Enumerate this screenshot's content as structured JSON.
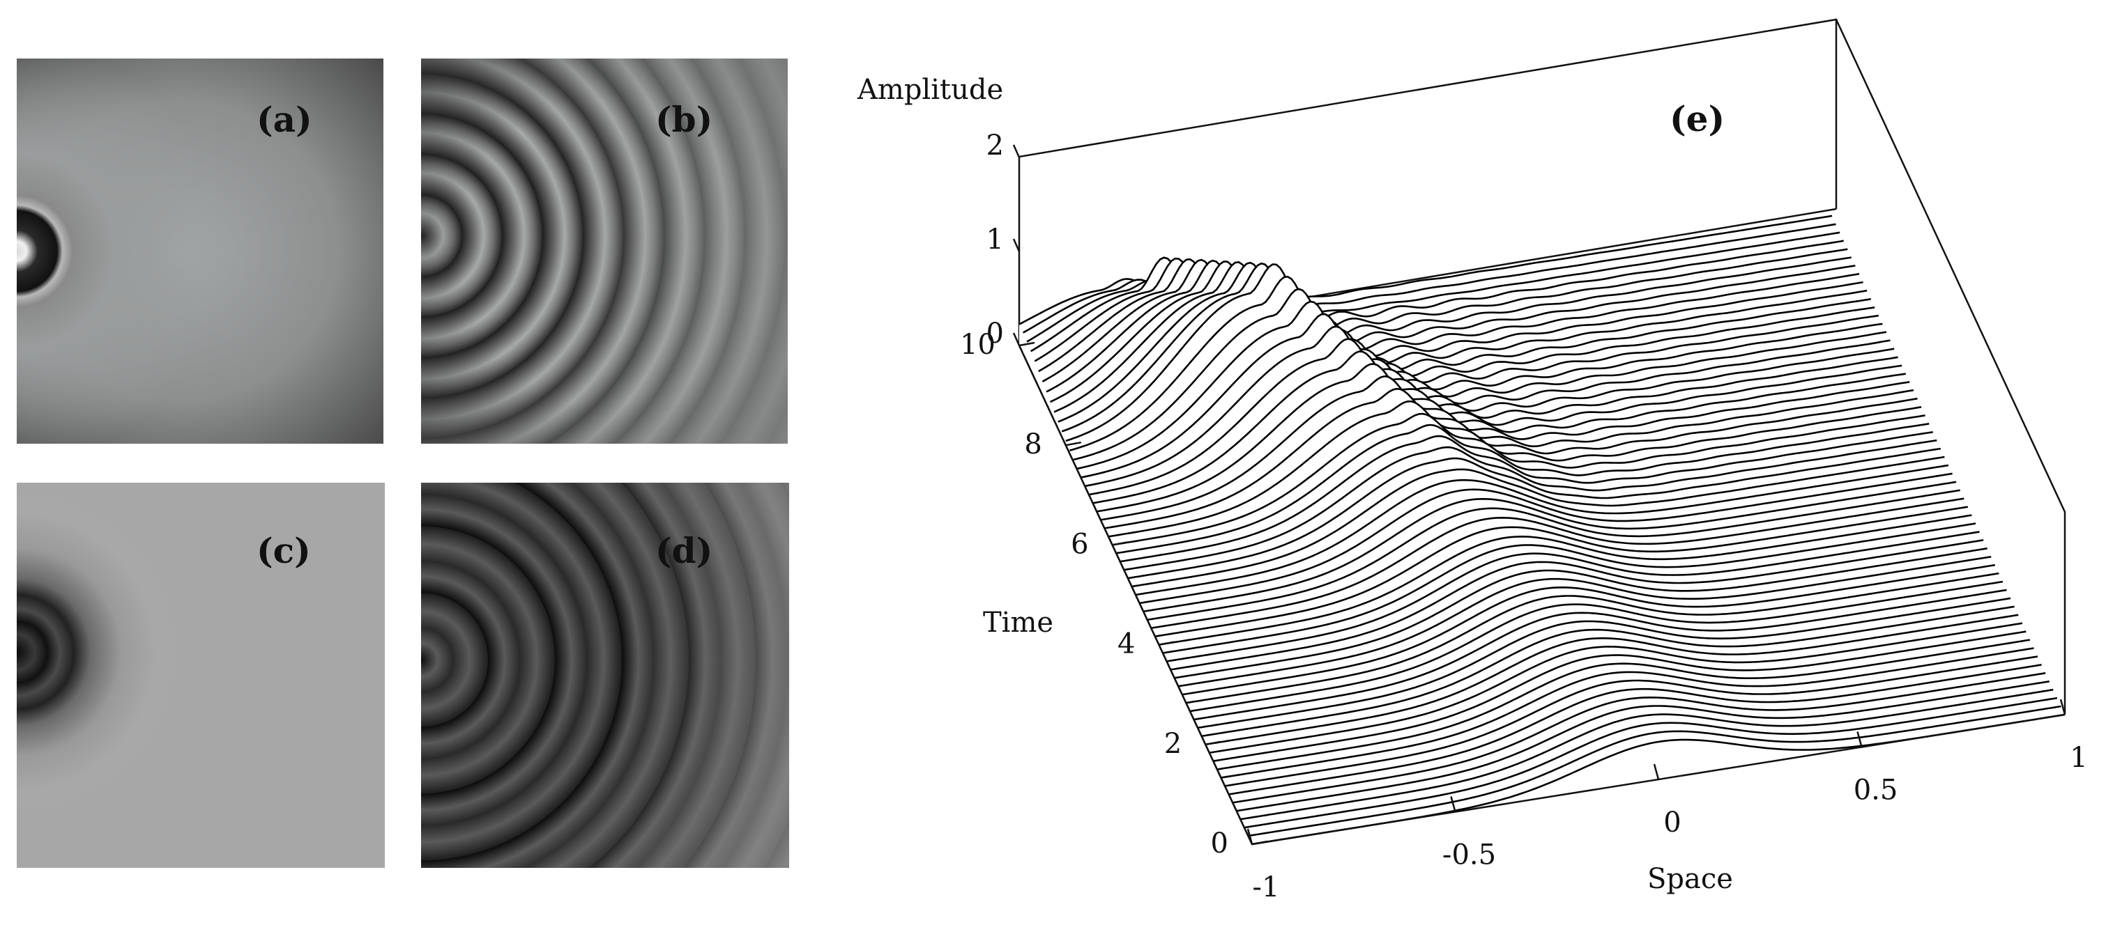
{
  "panels": [
    {
      "id": "a",
      "label": "(a)"
    },
    {
      "id": "b",
      "label": "(b)"
    },
    {
      "id": "c",
      "label": "(c)"
    },
    {
      "id": "d",
      "label": "(d)"
    }
  ],
  "chart_data": {
    "type": "waterfall-3d-line",
    "panel_label": "(e)",
    "title": "",
    "xlabel": "Space",
    "ylabel": "Time",
    "zlabel": "Amplitude",
    "x_ticks": [
      "-1",
      "-0.5",
      "0",
      "0.5",
      "1"
    ],
    "y_ticks": [
      "0",
      "2",
      "4",
      "6",
      "8",
      "10"
    ],
    "z_ticks": [
      "0",
      "1",
      "2"
    ],
    "xlim": [
      -1,
      1
    ],
    "ylim": [
      0,
      10
    ],
    "zlim": [
      0,
      2
    ],
    "series": [
      {
        "time": 0,
        "peak_x": 0,
        "peak_amplitude": 0.4
      },
      {
        "time": 4,
        "peak_x": -0.15,
        "peak_amplitude": 0.55
      },
      {
        "time": 6,
        "peak_x": -0.3,
        "peak_amplitude": 0.8
      },
      {
        "time": 8,
        "peak_x": -0.55,
        "peak_amplitude": 1.3
      },
      {
        "time": 10,
        "peak_x": -0.8,
        "peak_amplitude": 0.45
      }
    ],
    "line_color": "#000000",
    "grid": false
  }
}
